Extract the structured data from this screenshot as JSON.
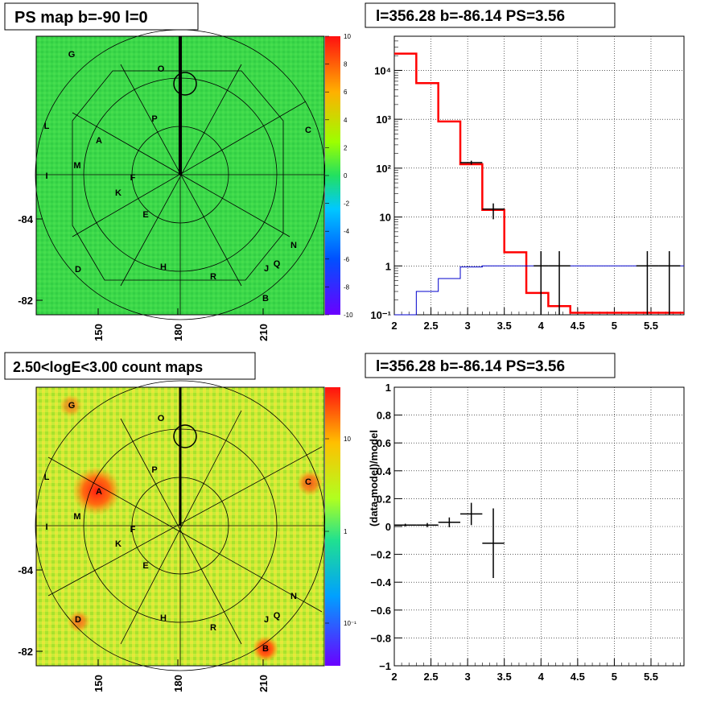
{
  "panels": {
    "tl": {
      "title": "PS map b=-90 l=0"
    },
    "tr": {
      "title": "l=356.28 b=-86.14 PS=3.56"
    },
    "bl": {
      "title": "2.50<logE<3.00 count maps"
    },
    "br": {
      "title": "l=356.28 b=-86.14 PS=3.56"
    }
  },
  "sky_axes": {
    "x_ticks": [
      "150",
      "180",
      "210"
    ],
    "y_ticks": [
      "-84",
      "-82"
    ]
  },
  "colorbar_top": {
    "labels": [
      "10",
      "8",
      "6",
      "4",
      "2",
      "0",
      "-2",
      "-4",
      "-6",
      "-8",
      "-10"
    ],
    "range": [
      -10,
      10
    ]
  },
  "colorbar_bottom": {
    "labels": [
      "10",
      "1",
      "10⁻¹"
    ]
  },
  "sources": [
    "G",
    "O",
    "P",
    "L",
    "A",
    "C",
    "M",
    "I",
    "F",
    "K",
    "E",
    "N",
    "D",
    "H",
    "R",
    "J",
    "Q",
    "B"
  ],
  "chart_data": [
    {
      "type": "line",
      "panel": "top-right",
      "title": "l=356.28 b=-86.14 PS=3.56",
      "x_ticks": [
        "2",
        "2.5",
        "3",
        "3.5",
        "4",
        "4.5",
        "5",
        "5.5"
      ],
      "y_ticks": [
        "10⁻¹",
        "1",
        "10",
        "10²",
        "10³",
        "10⁴"
      ],
      "xlim": [
        2.0,
        5.95
      ],
      "ylim": [
        0.1,
        50000
      ],
      "y_scale": "log",
      "grid": true,
      "series": [
        {
          "color": "#ff0000",
          "style": "step",
          "edges": [
            2.0,
            2.3,
            2.6,
            2.9,
            3.2,
            3.5,
            3.8,
            4.1,
            4.4,
            5.95
          ],
          "values": [
            22000,
            5500,
            900,
            120,
            14,
            1.9,
            0.28,
            0.15,
            0.11
          ]
        },
        {
          "color": "#0000cc",
          "style": "step",
          "edges": [
            2.0,
            2.3,
            2.6,
            2.9,
            3.2,
            3.5,
            3.8,
            4.1,
            4.4,
            5.95
          ],
          "values": [
            0.05,
            0.3,
            0.55,
            0.95,
            1.0,
            1.0,
            1.0,
            1.0,
            1.0
          ]
        },
        {
          "color": "#000000",
          "style": "points",
          "points": [
            {
              "x": 3.05,
              "y": 130,
              "xerr": 0.15,
              "ylo": 118,
              "yhi": 142
            },
            {
              "x": 3.35,
              "y": 14.5,
              "xerr": 0.15,
              "ylo": 9,
              "yhi": 19
            },
            {
              "x": 4.0,
              "y": 1.0,
              "xerr": 0.1,
              "ylo": 0.1,
              "yhi": 2.0
            },
            {
              "x": 4.25,
              "y": 1.0,
              "xerr": 0.15,
              "ylo": 0.1,
              "yhi": 2.0
            },
            {
              "x": 5.45,
              "y": 1.0,
              "xerr": 0.15,
              "ylo": 0.1,
              "yhi": 2.0
            },
            {
              "x": 5.75,
              "y": 1.0,
              "xerr": 0.15,
              "ylo": 0.1,
              "yhi": 2.0
            }
          ]
        }
      ]
    },
    {
      "type": "scatter",
      "panel": "bottom-right",
      "title": "l=356.28 b=-86.14 PS=3.56",
      "ylabel": "(data-model)/model",
      "x_ticks": [
        "2",
        "2.5",
        "3",
        "3.5",
        "4",
        "4.5",
        "5",
        "5.5"
      ],
      "y_ticks": [
        "−1",
        "−0.8",
        "−0.6",
        "−0.4",
        "−0.2",
        "0",
        "0.2",
        "0.4",
        "0.6",
        "0.8",
        "1"
      ],
      "xlim": [
        2.0,
        5.95
      ],
      "ylim": [
        -1,
        1
      ],
      "grid": true,
      "points": [
        {
          "x": 2.15,
          "y": 0.01,
          "xerr": 0.15,
          "yerr": 0.01
        },
        {
          "x": 2.45,
          "y": 0.01,
          "xerr": 0.15,
          "yerr": 0.015
        },
        {
          "x": 2.75,
          "y": 0.03,
          "xerr": 0.15,
          "yerr": 0.035
        },
        {
          "x": 3.05,
          "y": 0.09,
          "xerr": 0.15,
          "yerr": 0.08
        },
        {
          "x": 3.35,
          "y": -0.12,
          "xerr": 0.15,
          "yerr": 0.25
        }
      ]
    }
  ]
}
